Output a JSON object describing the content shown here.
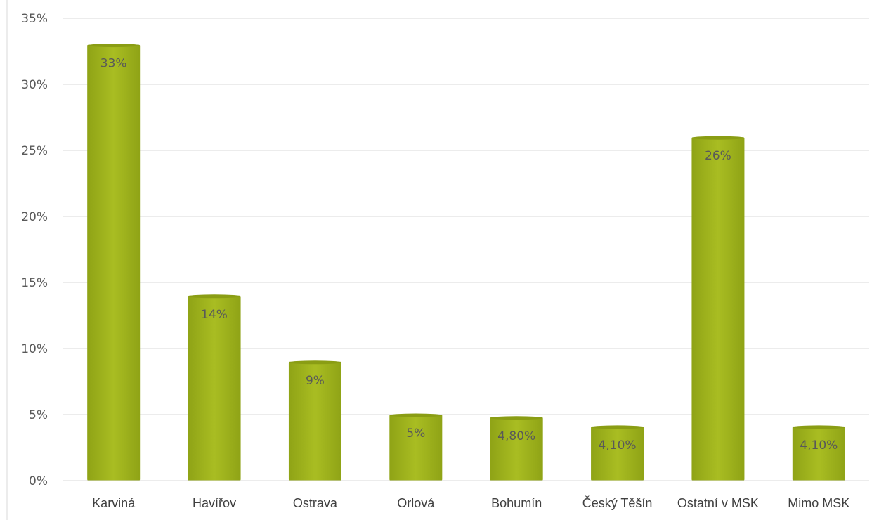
{
  "chart_data": {
    "type": "bar",
    "categories": [
      "Karviná",
      "Havířov",
      "Ostrava",
      "Orlová",
      "Bohumín",
      "Český Těšín",
      "Ostatní v MSK",
      "Mimo MSK"
    ],
    "values": [
      33,
      14,
      9,
      5,
      4.8,
      4.1,
      26,
      4.1
    ],
    "data_labels": [
      "33%",
      "14%",
      "9%",
      "5%",
      "4,80%",
      "4,10%",
      "26%",
      "4,10%"
    ],
    "y_ticks": [
      0,
      5,
      10,
      15,
      20,
      25,
      30,
      35
    ],
    "y_tick_labels": [
      "0%",
      "5%",
      "10%",
      "15%",
      "20%",
      "25%",
      "30%",
      "35%"
    ],
    "ylim": [
      0,
      35
    ],
    "title": "",
    "xlabel": "",
    "ylabel": "",
    "grid": true,
    "legend": "none",
    "bar_color": "#a3b81f",
    "bar_edge_color": "#8a9d14",
    "grid_color": "#d9d9d9"
  }
}
